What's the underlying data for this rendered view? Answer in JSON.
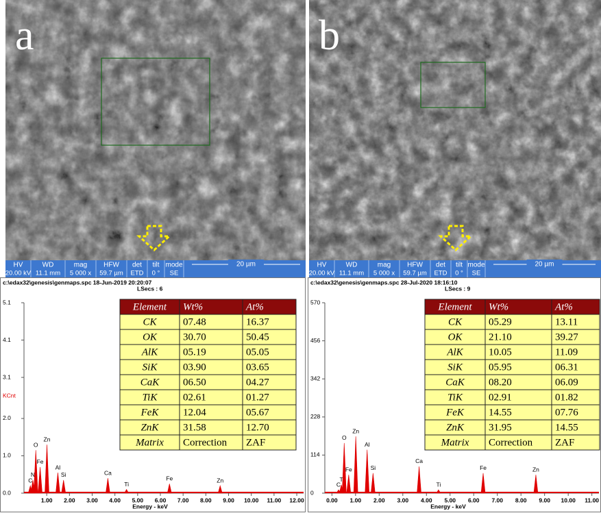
{
  "panels": [
    {
      "label": "a",
      "info_bar": {
        "headers": [
          "HV",
          "WD",
          "mag",
          "HFW",
          "det",
          "tilt",
          "mode"
        ],
        "values": [
          "20.00 kV",
          "11.1 mm",
          "5 000 x",
          "59.7 µm",
          "ETD",
          "0 °",
          "SE"
        ],
        "scale": "20 µm"
      },
      "spectrum": {
        "type": "spectrum",
        "header": "c:\\edax32\\genesis\\genmaps.spc  18-Jun-2019 20:20:07",
        "lsecs": "LSecs :  6",
        "ylabel": "KCnt",
        "xlabel": "Energy - keV",
        "color": "#e00000",
        "xlim": [
          0,
          12.3
        ],
        "ylim": [
          0,
          5.1
        ],
        "yticks": [
          {
            "value": 0,
            "label": "0.0"
          },
          {
            "value": 1,
            "label": "1.0"
          },
          {
            "value": 2,
            "label": "2.0"
          },
          3.1,
          4.1,
          5.1
        ],
        "xticks": [
          {
            "value": 1,
            "label": "1.00"
          },
          {
            "value": 2,
            "label": "2.00"
          },
          {
            "value": 3,
            "label": "3.00"
          },
          {
            "value": 4,
            "label": "4.00"
          },
          {
            "value": 5,
            "label": "5.00"
          },
          {
            "value": 6,
            "label": "6.00"
          },
          {
            "value": 7,
            "label": "7.00"
          },
          {
            "value": 8,
            "label": "8.00"
          },
          {
            "value": 9,
            "label": "9.00"
          },
          {
            "value": 10,
            "label": "10.00"
          },
          {
            "value": 11,
            "label": "11.00"
          },
          {
            "value": 12,
            "label": "12.00"
          }
        ],
        "peaks": {
          "labels": [
            "C",
            "N",
            "O",
            "Fe",
            "Zn",
            "Al",
            "Si",
            "Ca",
            "Ti",
            "Fe",
            "Zn"
          ],
          "x": [
            0.28,
            0.39,
            0.52,
            0.71,
            1.01,
            1.49,
            1.74,
            3.69,
            4.51,
            6.4,
            8.63
          ],
          "values": [
            0.2,
            0.35,
            1.15,
            0.7,
            1.3,
            0.55,
            0.35,
            0.4,
            0.1,
            0.25,
            0.2
          ]
        }
      },
      "table": {
        "header": [
          "Element",
          "Wt%",
          "At%"
        ],
        "rows": [
          [
            "CK",
            "07.48",
            "16.37"
          ],
          [
            "OK",
            "30.70",
            "50.45"
          ],
          [
            "AlK",
            "05.19",
            "05.05"
          ],
          [
            "SiK",
            "03.90",
            "03.65"
          ],
          [
            "CaK",
            "06.50",
            "04.27"
          ],
          [
            "TiK",
            "02.61",
            "01.27"
          ],
          [
            "FeK",
            "12.04",
            "05.67"
          ],
          [
            "ZnK",
            "31.58",
            "12.70"
          ],
          [
            "Matrix",
            "Correction",
            "ZAF"
          ]
        ]
      }
    },
    {
      "label": "b",
      "info_bar": {
        "headers": [
          "HV",
          "WD",
          "mag",
          "HFW",
          "det",
          "tilt",
          "mode"
        ],
        "values": [
          "20.00 kV",
          "11.1 mm",
          "5 000 x",
          "59.7 µm",
          "ETD",
          "0 °",
          "SE"
        ],
        "scale": "20 µm"
      },
      "spectrum": {
        "type": "spectrum",
        "header": "c:\\edax32\\genesis\\genmaps.spc  28-Jul-2020 18:16:10",
        "lsecs": "LSecs :  9",
        "xlabel": "Energy - keV",
        "color": "#e00000",
        "xlim": [
          -0.3,
          11.3
        ],
        "ylim": [
          0,
          570
        ],
        "yticks": [
          0,
          114,
          228,
          342,
          456,
          570
        ],
        "xticks": [
          {
            "value": 0,
            "label": "0.00"
          },
          {
            "value": 1,
            "label": "1.00"
          },
          {
            "value": 2,
            "label": "2.00"
          },
          {
            "value": 3,
            "label": "3.00"
          },
          {
            "value": 4,
            "label": "4.00"
          },
          {
            "value": 5,
            "label": "5.00"
          },
          {
            "value": 6,
            "label": "6.00"
          },
          {
            "value": 7,
            "label": "7.00"
          },
          {
            "value": 8,
            "label": "8.00"
          },
          {
            "value": 9,
            "label": "9.00"
          },
          {
            "value": 10,
            "label": "10.00"
          },
          {
            "value": 11,
            "label": "11.00"
          }
        ],
        "peaks": {
          "labels": [
            "C",
            "T",
            "O",
            "Fe",
            "Zn",
            "Al",
            "Si",
            "Ca",
            "Ti",
            "Fe",
            "Zn"
          ],
          "x": [
            0.28,
            0.4,
            0.52,
            0.71,
            1.01,
            1.49,
            1.74,
            3.69,
            4.51,
            6.4,
            8.63
          ],
          "values": [
            10,
            25,
            150,
            55,
            170,
            130,
            60,
            80,
            10,
            60,
            55
          ]
        }
      },
      "table": {
        "header": [
          "Element",
          "Wt%",
          "At%"
        ],
        "rows": [
          [
            "CK",
            "05.29",
            "13.11"
          ],
          [
            "OK",
            "21.10",
            "39.27"
          ],
          [
            "AlK",
            "10.05",
            "11.09"
          ],
          [
            "SiK",
            "05.95",
            "06.31"
          ],
          [
            "CaK",
            "08.20",
            "06.09"
          ],
          [
            "TiK",
            "02.91",
            "01.82"
          ],
          [
            "FeK",
            "14.55",
            "07.76"
          ],
          [
            "ZnK",
            "31.95",
            "14.55"
          ],
          [
            "Matrix",
            "Correction",
            "ZAF"
          ]
        ]
      }
    }
  ]
}
